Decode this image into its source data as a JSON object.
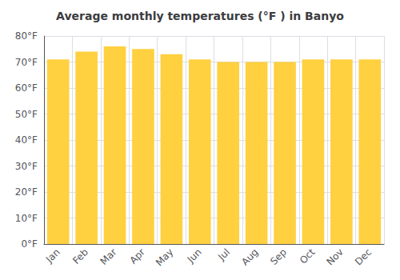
{
  "chart_data": {
    "type": "bar",
    "title": "Average monthly temperatures (°F ) in Banyo",
    "categories": [
      "Jan",
      "Feb",
      "Mar",
      "Apr",
      "May",
      "Jun",
      "Jul",
      "Aug",
      "Sep",
      "Oct",
      "Nov",
      "Dec"
    ],
    "values": [
      71,
      74,
      76,
      75,
      73,
      71,
      70,
      70,
      70,
      71,
      71,
      71
    ],
    "color": "#FFD040",
    "ylim": [
      0,
      80
    ],
    "yticks": [
      {
        "value": 0,
        "label": "0°F"
      },
      {
        "value": 10,
        "label": "10°F"
      },
      {
        "value": 20,
        "label": "20°F"
      },
      {
        "value": 30,
        "label": "30°F"
      },
      {
        "value": 40,
        "label": "40°F"
      },
      {
        "value": 50,
        "label": "50°F"
      },
      {
        "value": 60,
        "label": "60°F"
      },
      {
        "value": 70,
        "label": "70°F"
      },
      {
        "value": 80,
        "label": "80°F"
      }
    ],
    "grid": true
  }
}
